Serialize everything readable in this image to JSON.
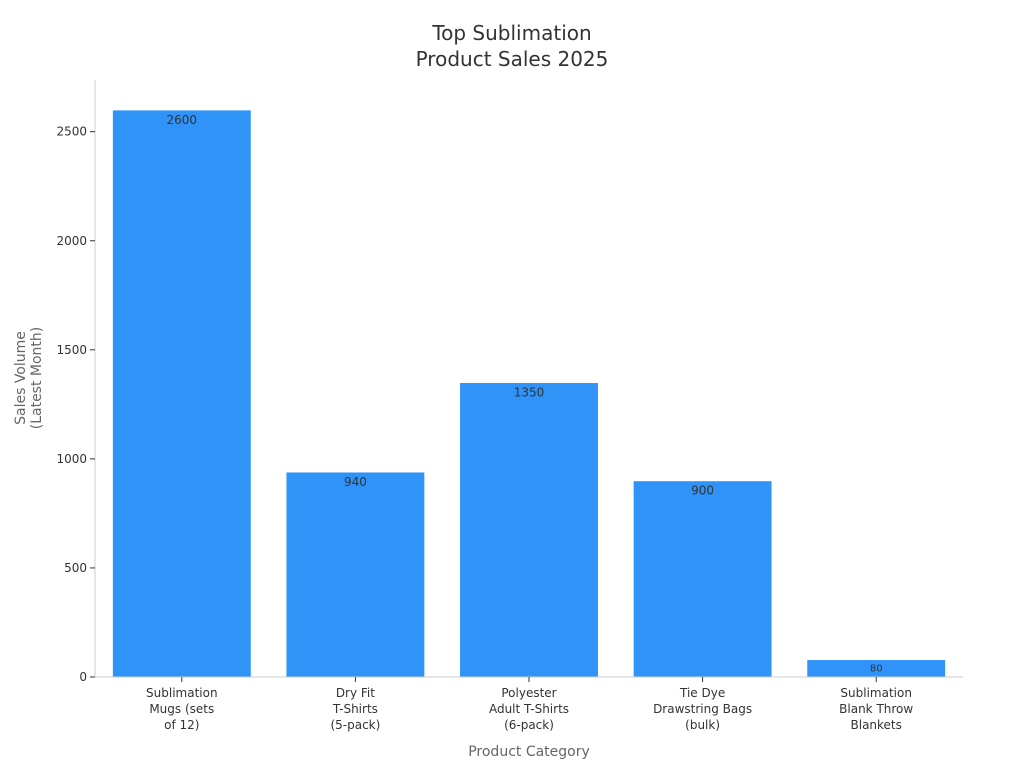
{
  "chart_data": {
    "type": "bar",
    "title_lines": [
      "Top Sublimation",
      "Product Sales 2025"
    ],
    "xlabel": "Product Category",
    "ylabel_lines": [
      "Sales Volume",
      "(Latest Month)"
    ],
    "categories": [
      [
        "Sublimation",
        "Mugs (sets",
        "of 12)"
      ],
      [
        "Dry Fit",
        "T-Shirts",
        "(5-pack)"
      ],
      [
        "Polyester",
        "Adult T-Shirts",
        "(6-pack)"
      ],
      [
        "Tie Dye",
        "Drawstring Bags",
        "(bulk)"
      ],
      [
        "Sublimation",
        "Blank Throw",
        "Blankets"
      ]
    ],
    "values": [
      2600,
      940,
      1350,
      900,
      80
    ],
    "data_labels": [
      "2600",
      "940",
      "1350",
      "900",
      "80"
    ],
    "yticks": [
      0,
      500,
      1000,
      1500,
      2000,
      2500
    ],
    "ylim": [
      0,
      2737
    ],
    "grid": false,
    "colors": {
      "bar": "#2f93f7",
      "axis": "#cccccc"
    }
  }
}
